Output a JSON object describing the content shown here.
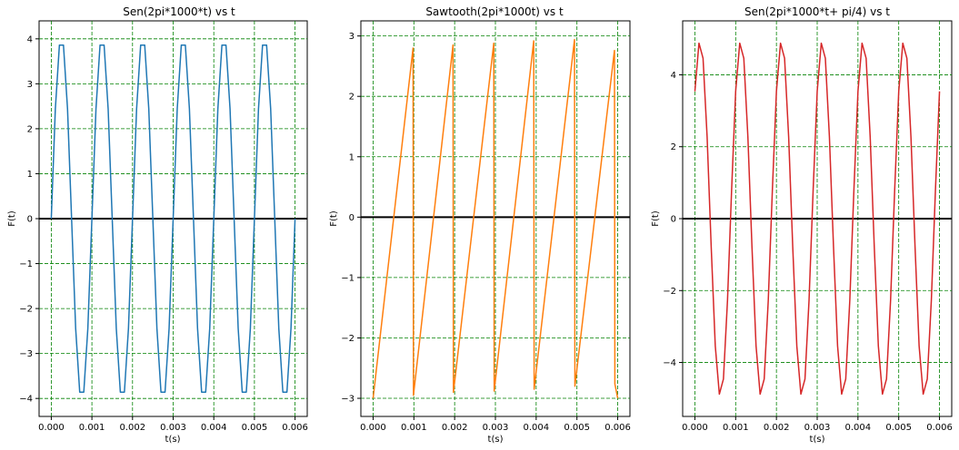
{
  "chart_data": [
    {
      "type": "line",
      "title": "Sen(2pi*1000*t) vs t",
      "xlabel": "t(s)",
      "ylabel": "F(t)",
      "xlim": [
        -0.0003,
        0.0063
      ],
      "ylim": [
        -4.4,
        4.4
      ],
      "xticks": [
        0,
        0.001,
        0.002,
        0.003,
        0.004,
        0.005,
        0.006
      ],
      "xtick_labels": [
        "0.000",
        "0.001",
        "0.002",
        "0.003",
        "0.004",
        "0.005",
        "0.006"
      ],
      "yticks": [
        -4,
        -3,
        -2,
        -1,
        0,
        1,
        2,
        3,
        4
      ],
      "ytick_labels": [
        "−4",
        "−3",
        "−2",
        "−1",
        "0",
        "1",
        "2",
        "3",
        "4"
      ],
      "grid": true,
      "color": "#1f77b4",
      "series": [
        {
          "x": [
            0,
            0.0001,
            0.0002,
            0.0003,
            0.0004,
            0.0005,
            0.0006,
            0.0007,
            0.0008,
            0.0009,
            0.001,
            0.0011,
            0.0012,
            0.0013,
            0.0014,
            0.0015,
            0.0016,
            0.0017,
            0.0018,
            0.0019,
            0.002,
            0.0021,
            0.0022,
            0.0023,
            0.0024,
            0.0025,
            0.0026,
            0.0027,
            0.0028,
            0.0029,
            0.003,
            0.0031,
            0.0032,
            0.0033,
            0.0034,
            0.0035,
            0.0036,
            0.0037,
            0.0038,
            0.0039,
            0.004,
            0.0041,
            0.0042,
            0.0043,
            0.0044,
            0.0045,
            0.0046,
            0.0047,
            0.0048,
            0.0049,
            0.005,
            0.0051,
            0.0052,
            0.0053,
            0.0054,
            0.0055,
            0.0056,
            0.0057,
            0.0058,
            0.0059,
            0.006
          ],
          "y": [
            0,
            2.44,
            3.86,
            3.86,
            2.44,
            0,
            -2.44,
            -3.86,
            -3.86,
            -2.44,
            0,
            2.44,
            3.86,
            3.86,
            2.44,
            0,
            -2.44,
            -3.86,
            -3.86,
            -2.44,
            0,
            2.44,
            3.86,
            3.86,
            2.44,
            0,
            -2.44,
            -3.86,
            -3.86,
            -2.44,
            0,
            2.44,
            3.86,
            3.86,
            2.44,
            0,
            -2.44,
            -3.86,
            -3.86,
            -2.44,
            0,
            2.44,
            3.86,
            3.86,
            2.44,
            0,
            -2.44,
            -3.86,
            -3.86,
            -2.44,
            0,
            2.44,
            3.86,
            3.86,
            2.44,
            0,
            -2.44,
            -3.86,
            -3.86,
            -2.44,
            0
          ]
        }
      ]
    },
    {
      "type": "line",
      "title": "Sawtooth(2pi*1000t) vs t",
      "xlabel": "t(s)",
      "ylabel": "F(t)",
      "xlim": [
        -0.0003,
        0.0063
      ],
      "ylim": [
        -3.3,
        3.25
      ],
      "xticks": [
        0,
        0.001,
        0.002,
        0.003,
        0.004,
        0.005,
        0.006
      ],
      "xtick_labels": [
        "0.000",
        "0.001",
        "0.002",
        "0.003",
        "0.004",
        "0.005",
        "0.006"
      ],
      "yticks": [
        -3,
        -2,
        -1,
        0,
        1,
        2,
        3
      ],
      "ytick_labels": [
        "−3",
        "−2",
        "−1",
        "0",
        "1",
        "2",
        "3"
      ],
      "grid": true,
      "color": "#ff7f0e",
      "series": [
        {
          "x": [
            0,
            0.00098,
            0.00099,
            0.00196,
            0.00197,
            0.00296,
            0.00297,
            0.00394,
            0.00395,
            0.00494,
            0.00495,
            0.00592,
            0.00593,
            0.006
          ],
          "y": [
            -3,
            2.8,
            -2.95,
            2.85,
            -2.9,
            2.88,
            -2.88,
            2.92,
            -2.85,
            2.94,
            -2.8,
            2.76,
            -2.76,
            -3
          ]
        }
      ]
    },
    {
      "type": "line",
      "title": "Sen(2pi*1000*t+ pi/4) vs t",
      "xlabel": "t(s)",
      "ylabel": "F(t)",
      "xlim": [
        -0.0003,
        0.0063
      ],
      "ylim": [
        -5.5,
        5.5
      ],
      "xticks": [
        0,
        0.001,
        0.002,
        0.003,
        0.004,
        0.005,
        0.006
      ],
      "xtick_labels": [
        "0.000",
        "0.001",
        "0.002",
        "0.003",
        "0.004",
        "0.005",
        "0.006"
      ],
      "yticks": [
        -4,
        -2,
        0,
        2,
        4
      ],
      "ytick_labels": [
        "−4",
        "−2",
        "0",
        "2",
        "4"
      ],
      "grid": true,
      "color": "#d62728",
      "series": [
        {
          "x": [
            0,
            0.0001,
            0.0002,
            0.0003,
            0.0004,
            0.0005,
            0.0006,
            0.0007,
            0.0008,
            0.0009,
            0.001,
            0.0011,
            0.0012,
            0.0013,
            0.0014,
            0.0015,
            0.0016,
            0.0017,
            0.0018,
            0.0019,
            0.002,
            0.0021,
            0.0022,
            0.0023,
            0.0024,
            0.0025,
            0.0026,
            0.0027,
            0.0028,
            0.0029,
            0.003,
            0.0031,
            0.0032,
            0.0033,
            0.0034,
            0.0035,
            0.0036,
            0.0037,
            0.0038,
            0.0039,
            0.004,
            0.0041,
            0.0042,
            0.0043,
            0.0044,
            0.0045,
            0.0046,
            0.0047,
            0.0048,
            0.0049,
            0.005,
            0.0051,
            0.0052,
            0.0053,
            0.0054,
            0.0055,
            0.0056,
            0.0057,
            0.0058,
            0.0059,
            0.006
          ],
          "y": [
            3.54,
            4.88,
            4.46,
            2.27,
            -0.78,
            -3.54,
            -4.88,
            -4.46,
            -2.27,
            0.78,
            3.54,
            4.88,
            4.46,
            2.27,
            -0.78,
            -3.54,
            -4.88,
            -4.46,
            -2.27,
            0.78,
            3.54,
            4.88,
            4.46,
            2.27,
            -0.78,
            -3.54,
            -4.88,
            -4.46,
            -2.27,
            0.78,
            3.54,
            4.88,
            4.46,
            2.27,
            -0.78,
            -3.54,
            -4.88,
            -4.46,
            -2.27,
            0.78,
            3.54,
            4.88,
            4.46,
            2.27,
            -0.78,
            -3.54,
            -4.88,
            -4.46,
            -2.27,
            0.78,
            3.54,
            4.88,
            4.46,
            2.27,
            -0.78,
            -3.54,
            -4.88,
            -4.46,
            -2.27,
            0.78,
            3.54
          ]
        }
      ]
    }
  ]
}
